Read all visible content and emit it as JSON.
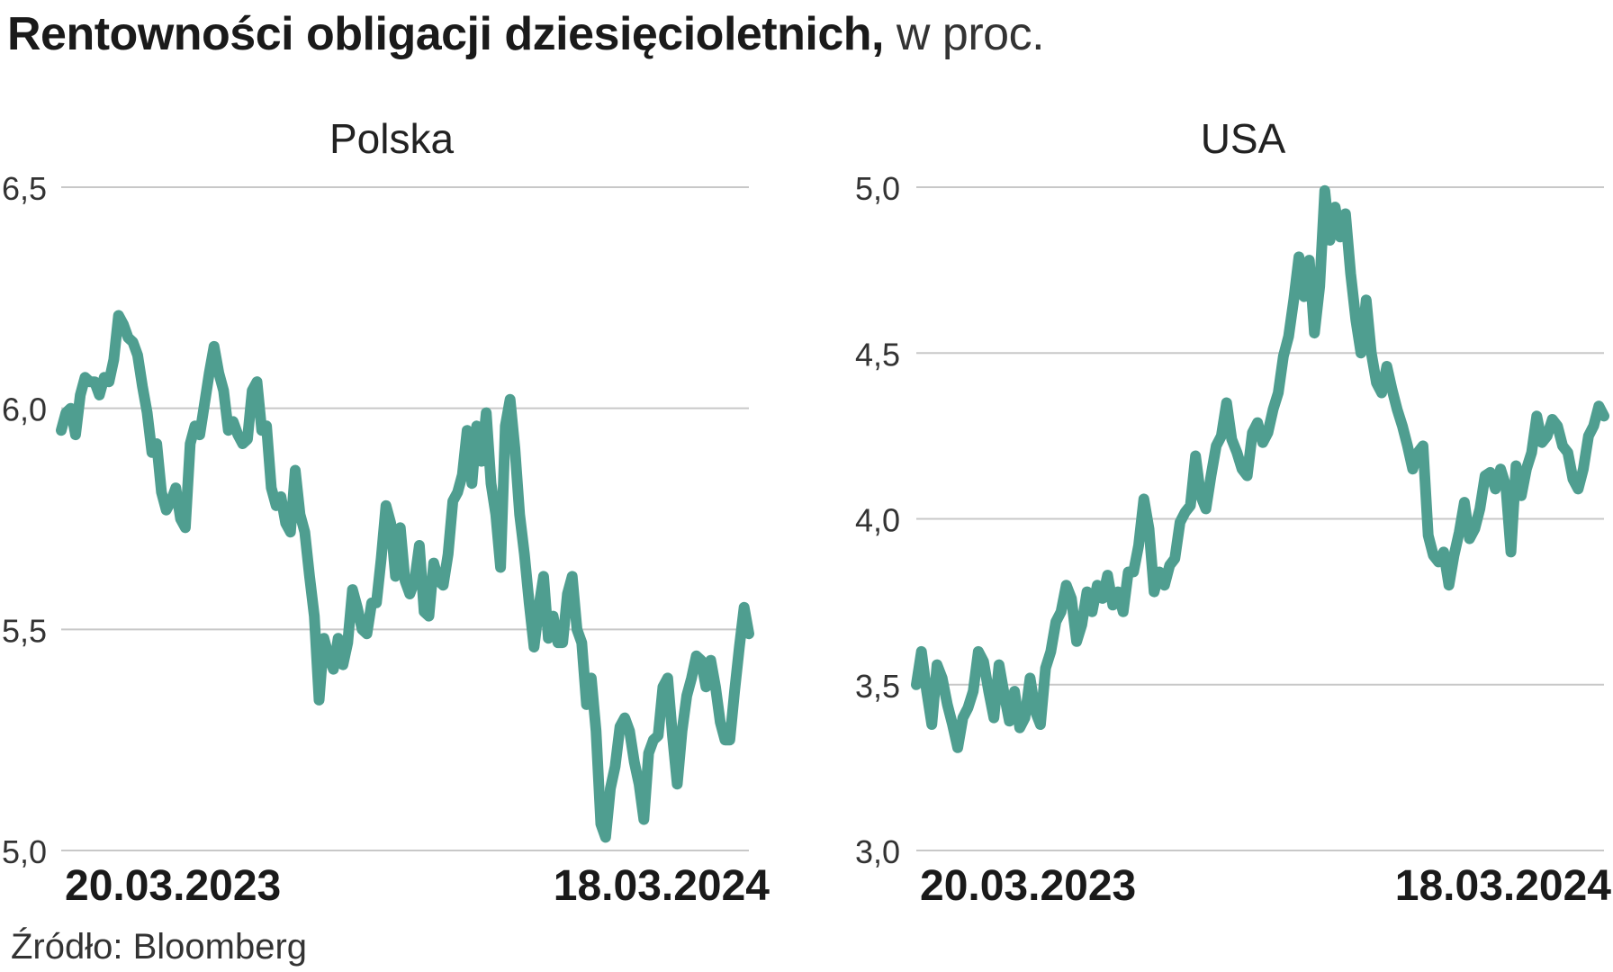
{
  "title": {
    "main": "Rentowności obligacji dziesięcioletnich,",
    "suffix": "w proc."
  },
  "source": "Źródło: Bloomberg",
  "line_color": "#4f9e90",
  "chart_data": [
    {
      "type": "line",
      "title": "Polska",
      "x_start_label": "20.03.2023",
      "x_end_label": "18.03.2024",
      "ylim": [
        5.0,
        6.5
      ],
      "yticks": [
        "6,5",
        "6,0",
        "5,5",
        "5,0"
      ],
      "grid": true,
      "values": [
        5.95,
        5.99,
        6.0,
        5.94,
        6.03,
        6.07,
        6.06,
        6.06,
        6.03,
        6.07,
        6.06,
        6.11,
        6.21,
        6.19,
        6.16,
        6.15,
        6.12,
        6.05,
        5.99,
        5.9,
        5.92,
        5.81,
        5.77,
        5.79,
        5.82,
        5.75,
        5.73,
        5.92,
        5.96,
        5.94,
        6.01,
        6.08,
        6.14,
        6.08,
        6.04,
        5.95,
        5.97,
        5.94,
        5.92,
        5.93,
        6.04,
        6.06,
        5.95,
        5.96,
        5.82,
        5.78,
        5.8,
        5.74,
        5.72,
        5.86,
        5.76,
        5.72,
        5.62,
        5.53,
        5.34,
        5.48,
        5.44,
        5.41,
        5.48,
        5.42,
        5.47,
        5.59,
        5.55,
        5.5,
        5.49,
        5.56,
        5.56,
        5.66,
        5.78,
        5.74,
        5.62,
        5.73,
        5.61,
        5.58,
        5.61,
        5.69,
        5.54,
        5.53,
        5.65,
        5.61,
        5.6,
        5.67,
        5.79,
        5.81,
        5.85,
        5.95,
        5.83,
        5.96,
        5.88,
        5.99,
        5.83,
        5.76,
        5.64,
        5.96,
        6.02,
        5.91,
        5.76,
        5.67,
        5.56,
        5.46,
        5.55,
        5.62,
        5.48,
        5.53,
        5.47,
        5.47,
        5.58,
        5.62,
        5.5,
        5.47,
        5.33,
        5.39,
        5.27,
        5.06,
        5.03,
        5.14,
        5.19,
        5.28,
        5.3,
        5.27,
        5.2,
        5.15,
        5.07,
        5.22,
        5.25,
        5.26,
        5.37,
        5.39,
        5.26,
        5.15,
        5.27,
        5.35,
        5.39,
        5.44,
        5.43,
        5.37,
        5.43,
        5.37,
        5.29,
        5.25,
        5.25,
        5.36,
        5.46,
        5.55,
        5.49
      ]
    },
    {
      "type": "line",
      "title": "USA",
      "x_start_label": "20.03.2023",
      "x_end_label": "18.03.2024",
      "ylim": [
        3.0,
        5.0
      ],
      "yticks": [
        "5,0",
        "4,5",
        "4,0",
        "3,5",
        "3,0"
      ],
      "grid": true,
      "values": [
        3.5,
        3.6,
        3.48,
        3.38,
        3.56,
        3.52,
        3.44,
        3.38,
        3.31,
        3.4,
        3.43,
        3.48,
        3.6,
        3.57,
        3.48,
        3.4,
        3.56,
        3.47,
        3.39,
        3.48,
        3.37,
        3.4,
        3.52,
        3.42,
        3.38,
        3.55,
        3.6,
        3.69,
        3.72,
        3.8,
        3.76,
        3.63,
        3.68,
        3.78,
        3.72,
        3.8,
        3.76,
        3.83,
        3.74,
        3.78,
        3.72,
        3.84,
        3.84,
        3.92,
        4.06,
        3.97,
        3.78,
        3.84,
        3.8,
        3.86,
        3.88,
        3.99,
        4.02,
        4.04,
        4.19,
        4.07,
        4.03,
        4.13,
        4.22,
        4.25,
        4.35,
        4.24,
        4.2,
        4.15,
        4.13,
        4.26,
        4.29,
        4.23,
        4.26,
        4.33,
        4.38,
        4.49,
        4.55,
        4.66,
        4.79,
        4.67,
        4.78,
        4.56,
        4.7,
        4.99,
        4.84,
        4.94,
        4.85,
        4.92,
        4.74,
        4.6,
        4.5,
        4.66,
        4.5,
        4.41,
        4.38,
        4.46,
        4.39,
        4.33,
        4.28,
        4.22,
        4.15,
        4.2,
        4.22,
        3.95,
        3.89,
        3.87,
        3.9,
        3.8,
        3.89,
        3.96,
        4.05,
        3.94,
        3.97,
        4.03,
        4.13,
        4.14,
        4.09,
        4.15,
        4.1,
        3.9,
        4.16,
        4.07,
        4.15,
        4.2,
        4.31,
        4.23,
        4.25,
        4.3,
        4.28,
        4.22,
        4.2,
        4.12,
        4.09,
        4.15,
        4.25,
        4.28,
        4.34,
        4.31
      ]
    }
  ]
}
